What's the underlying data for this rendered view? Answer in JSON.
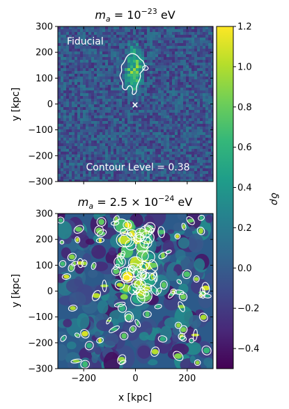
{
  "chart_data": [
    {
      "type": "heatmap",
      "title": "m_a = 10^-23 eV",
      "title_parts": {
        "base": "m",
        "sub": "a",
        "mid": " = 10",
        "sup": "−23",
        "unit": " eV"
      },
      "annotation": "Fiducial",
      "contour_note": "Contour Level = 0.38",
      "contour_level": 0.38,
      "xlim": [
        -300,
        300
      ],
      "ylim": [
        -300,
        300
      ],
      "xticks": [
        -200,
        0,
        200
      ],
      "yticks": [
        300,
        200,
        100,
        0,
        -100,
        -200,
        -300
      ],
      "ytick_labels": [
        "300",
        "200",
        "100",
        "0",
        "−100",
        "−200",
        "−300"
      ],
      "ylabel": "y [kpc]",
      "center_marker": {
        "x": 0,
        "y": 0,
        "symbol": "×"
      },
      "overdensity_region": {
        "x_range": [
          -40,
          30
        ],
        "y_range": [
          40,
          230
        ]
      }
    },
    {
      "type": "heatmap",
      "title": "m_a = 2.5 × 10^-24 eV",
      "title_parts": {
        "base": "m",
        "sub": "a",
        "mid": " = 2.5 × 10",
        "sup": "−24",
        "unit": " eV"
      },
      "xlim": [
        -300,
        300
      ],
      "ylim": [
        -300,
        300
      ],
      "xticks": [
        -200,
        0,
        200
      ],
      "xtick_labels": [
        "−200",
        "0",
        "200"
      ],
      "yticks": [
        300,
        200,
        100,
        0,
        -100,
        -200,
        -300
      ],
      "ytick_labels": [
        "300",
        "200",
        "100",
        "0",
        "−100",
        "−200",
        "−300"
      ],
      "xlabel": "x [kpc]",
      "ylabel": "y [kpc]",
      "center_marker": {
        "x": 0,
        "y": 0,
        "symbol": "×"
      }
    }
  ],
  "colorbar": {
    "label": "δρ",
    "range": [
      -0.5,
      1.2
    ],
    "ticks": [
      1.2,
      1.0,
      0.8,
      0.6,
      0.4,
      0.2,
      0.0,
      -0.2,
      -0.4
    ],
    "tick_labels": [
      "1.2",
      "1.0",
      "0.8",
      "0.6",
      "0.4",
      "0.2",
      "0.0",
      "−0.2",
      "−0.4"
    ],
    "colormap": "viridis",
    "colormap_stops": [
      "#440154",
      "#482878",
      "#3e4989",
      "#31688e",
      "#26828e",
      "#1f9e89",
      "#35b779",
      "#6ece58",
      "#b5de2b",
      "#fde725"
    ]
  }
}
